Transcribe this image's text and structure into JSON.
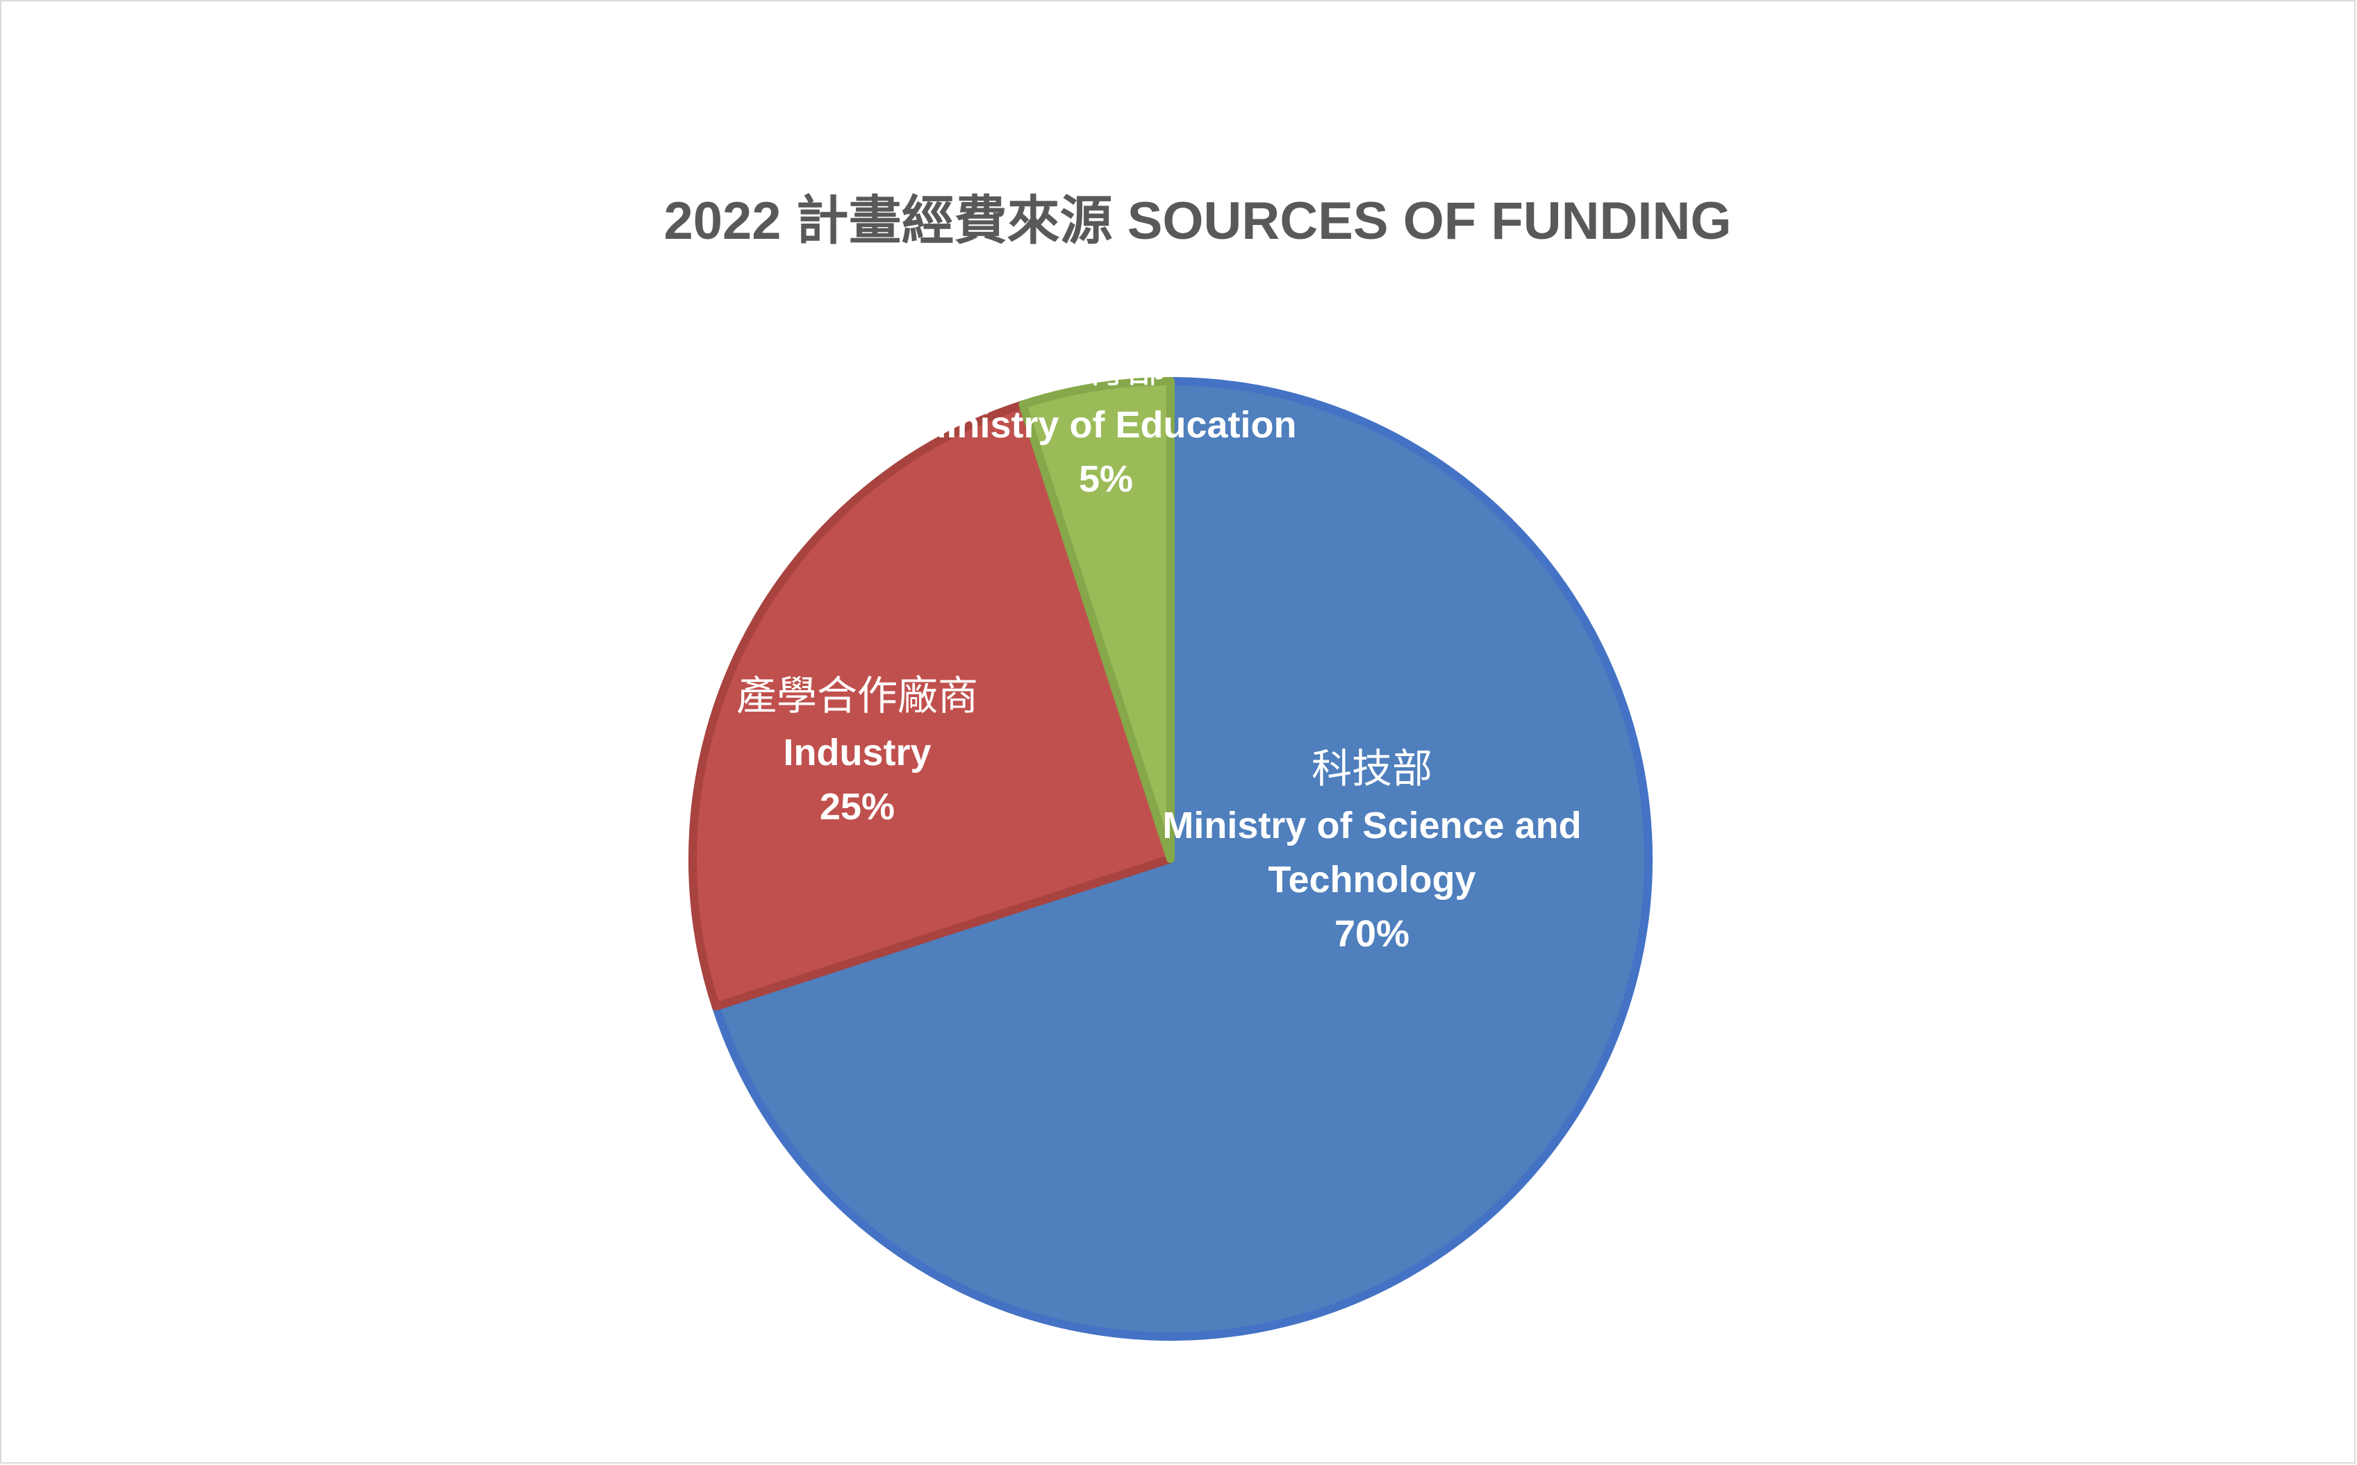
{
  "chart_data": {
    "type": "pie",
    "title": "2022 計畫經費來源 SOURCES OF FUNDING",
    "slices": [
      {
        "label_cn": "科技部",
        "label_en_lines": [
          "Ministry of Science and",
          "Technology"
        ],
        "value": 70,
        "percent_label": "70%",
        "color": "#4F7FBC",
        "stroke": "#4472C4"
      },
      {
        "label_cn": "產學合作廠商",
        "label_en_lines": [
          "Industry"
        ],
        "value": 25,
        "percent_label": "25%",
        "color": "#C0504D",
        "stroke": "#A8433F"
      },
      {
        "label_cn": "教育部",
        "label_en_lines": [
          "Ministry of Education"
        ],
        "value": 5,
        "percent_label": "5%",
        "color": "#9BBB59",
        "stroke": "#86A84A"
      }
    ]
  }
}
